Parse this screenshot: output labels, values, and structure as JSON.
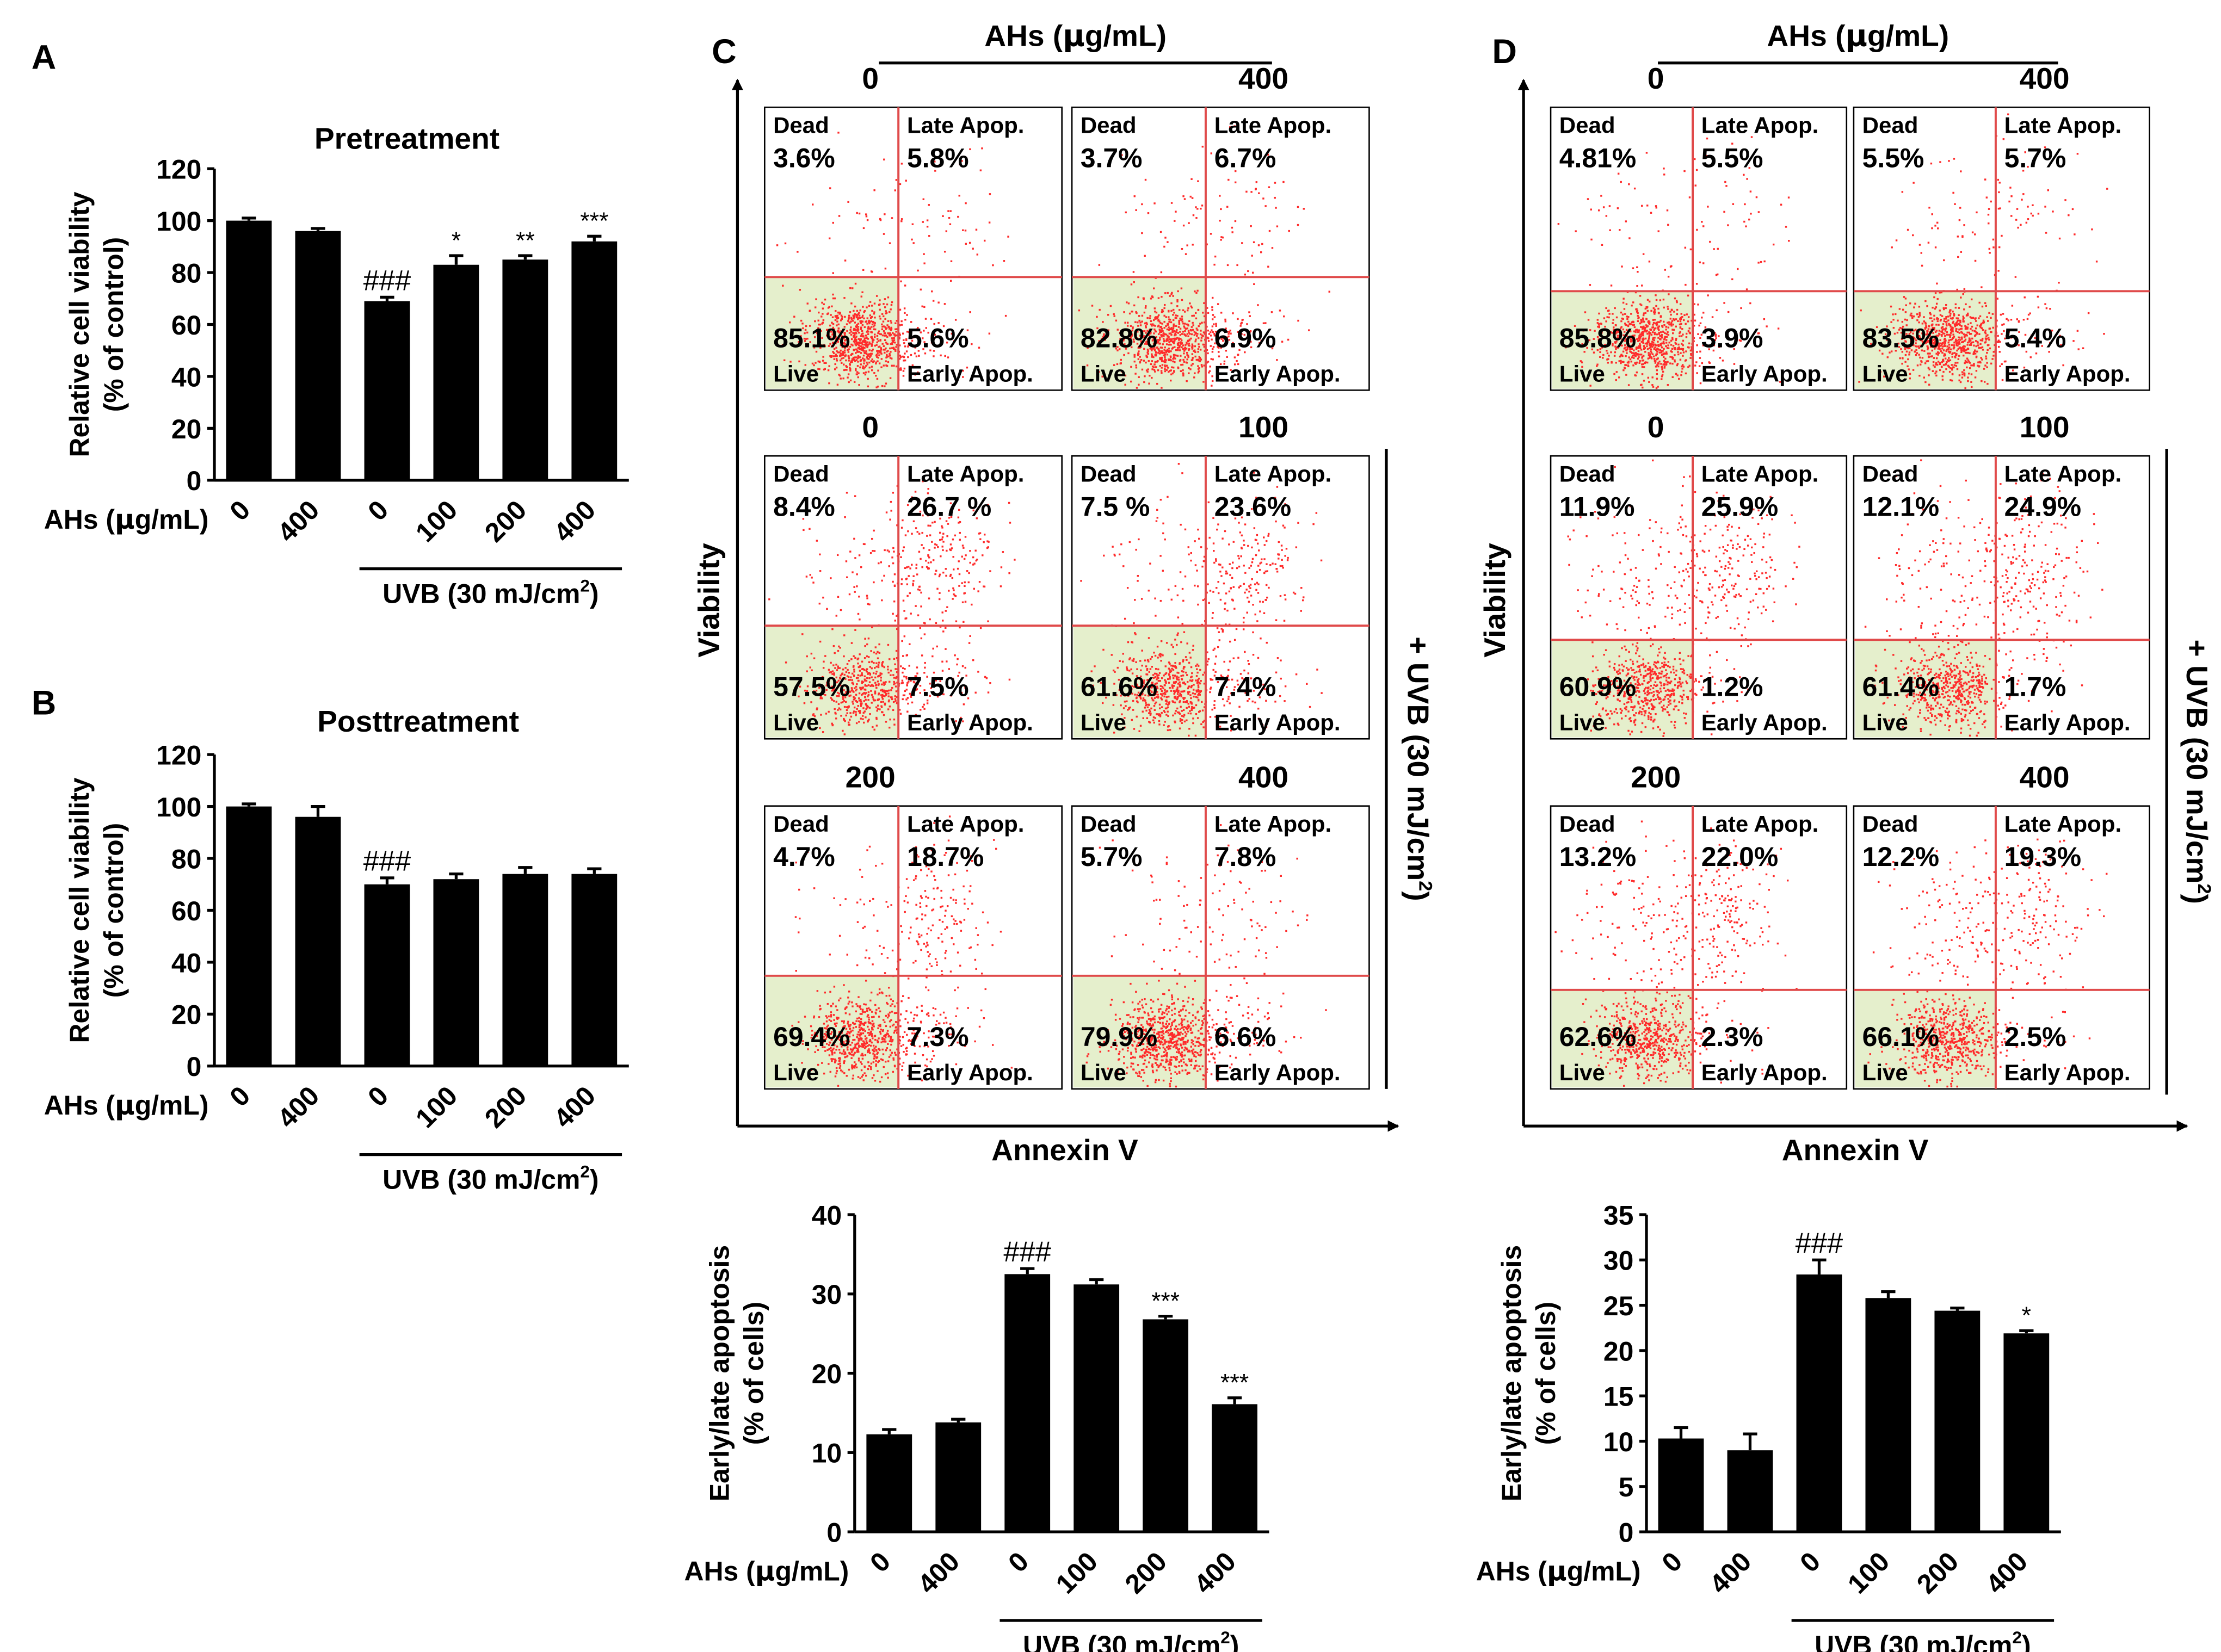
{
  "figure": {
    "panel_labels": [
      "A",
      "B",
      "C",
      "D"
    ],
    "greek_mu": "μ",
    "sup_2": "2",
    "ahs_header": {
      "pre": "AHs (",
      "mu": "μ",
      "post": "g/mL)"
    },
    "flow_axis": {
      "y": "Viability",
      "x": "Annexin V"
    },
    "side_label": "+ UVB (30 mJ/cm",
    "side_label_close": ")",
    "quadrant_labels": {
      "dead": "Dead",
      "late": "Late Apop.",
      "live": "Live",
      "early": "Early Apop."
    },
    "colors": {
      "bar": "#000000",
      "dot": "#ff2a2a",
      "gate": "#e04a4a",
      "live_fill": "#e5efcc",
      "axis": "#000000"
    }
  },
  "flow_panels": {
    "C": {
      "rows": [
        {
          "left": "0",
          "right": "400"
        },
        {
          "left": "0",
          "right": "100"
        },
        {
          "left": "200",
          "right": "400"
        }
      ],
      "plots": [
        {
          "dead": "3.6%",
          "late": "5.8%",
          "live": "85.1%",
          "early": "5.6%"
        },
        {
          "dead": "3.7%",
          "late": "6.7%",
          "live": "82.8%",
          "early": "6.9%"
        },
        {
          "dead": "8.4%",
          "late": "26.7 %",
          "live": "57.5%",
          "early": "7.5%"
        },
        {
          "dead": "7.5 %",
          "late": "23.6%",
          "live": "61.6%",
          "early": "7.4%"
        },
        {
          "dead": "4.7%",
          "late": "18.7%",
          "live": "69.4%",
          "early": "7.3%"
        },
        {
          "dead": "5.7%",
          "late": "7.8%",
          "live": "79.9%",
          "early": "6.6%"
        }
      ]
    },
    "D": {
      "rows": [
        {
          "left": "0",
          "right": "400"
        },
        {
          "left": "0",
          "right": "100"
        },
        {
          "left": "200",
          "right": "400"
        }
      ],
      "plots": [
        {
          "dead": "4.81%",
          "late": "5.5%",
          "live": "85.8%",
          "early": "3.9%"
        },
        {
          "dead": "5.5%",
          "late": "5.7%",
          "live": "83.5%",
          "early": "5.4%"
        },
        {
          "dead": "11.9%",
          "late": "25.9%",
          "live": "60.9%",
          "early": "1.2%"
        },
        {
          "dead": "12.1%",
          "late": "24.9%",
          "live": "61.4%",
          "early": "1.7%"
        },
        {
          "dead": "13.2%",
          "late": "22.0%",
          "live": "62.6%",
          "early": "2.3%"
        },
        {
          "dead": "12.2%",
          "late": "19.3%",
          "live": "66.1%",
          "early": "2.5%"
        }
      ]
    }
  },
  "chart_data": [
    {
      "id": "A",
      "type": "bar",
      "title": "Pretreatment",
      "ylabel": [
        "Relative cell viability",
        "(% of control)"
      ],
      "xlabel": {
        "pre": "AHs (",
        "mu": "μ",
        "post": "g/mL)"
      },
      "group_label": {
        "text": "UVB (30 mJ/cm",
        "sup": "2",
        "close": ")"
      },
      "categories": [
        "0",
        "400",
        "0",
        "100",
        "200",
        "400"
      ],
      "values": [
        100,
        96,
        69,
        83,
        85,
        92
      ],
      "errors": [
        1,
        1,
        1.5,
        3.5,
        1.5,
        2
      ],
      "annotations": [
        "",
        "",
        "###",
        "*",
        "**",
        "***"
      ],
      "ylim": [
        0,
        120
      ],
      "yticks": [
        "0",
        "20",
        "40",
        "60",
        "80",
        "100",
        "120"
      ]
    },
    {
      "id": "B",
      "type": "bar",
      "title": "Posttreatment",
      "ylabel": [
        "Relative cell viability",
        "(% of control)"
      ],
      "xlabel": {
        "pre": "AHs (",
        "mu": "μ",
        "post": "g/mL)"
      },
      "group_label": {
        "text": "UVB (30 mJ/cm",
        "sup": "2",
        "close": ")"
      },
      "categories": [
        "0",
        "400",
        "0",
        "100",
        "200",
        "400"
      ],
      "values": [
        100,
        96,
        70,
        72,
        74,
        74
      ],
      "errors": [
        1,
        4,
        2.5,
        2,
        2.5,
        2
      ],
      "annotations": [
        "",
        "",
        "###",
        "",
        "",
        ""
      ],
      "ylim": [
        0,
        120
      ],
      "yticks": [
        "0",
        "20",
        "40",
        "60",
        "80",
        "100",
        "120"
      ]
    },
    {
      "id": "C",
      "type": "bar",
      "title": "",
      "ylabel": [
        "Early/late apoptosis",
        "(% of cells)"
      ],
      "xlabel": {
        "pre": "AHs (",
        "mu": "μ",
        "post": "g/mL)"
      },
      "group_label": {
        "text": "UVB (30 mJ/cm",
        "sup": "2",
        "close": ")"
      },
      "categories": [
        "0",
        "400",
        "0",
        "100",
        "200",
        "400"
      ],
      "values": [
        12.3,
        13.8,
        32.5,
        31.2,
        26.8,
        16.1
      ],
      "errors": [
        0.6,
        0.4,
        0.7,
        0.6,
        0.4,
        0.8
      ],
      "annotations": [
        "",
        "",
        "###",
        "",
        "***",
        "***"
      ],
      "ylim": [
        0,
        40
      ],
      "yticks": [
        "0",
        "10",
        "20",
        "30",
        "40"
      ]
    },
    {
      "id": "D",
      "type": "bar",
      "title": "",
      "ylabel": [
        "Early/late apoptosis",
        "(% of cells)"
      ],
      "xlabel": {
        "pre": "AHs (",
        "mu": "μ",
        "post": "g/mL)"
      },
      "group_label": {
        "text": "UVB (30 mJ/cm",
        "sup": "2",
        "close": ")"
      },
      "categories": [
        "0",
        "400",
        "0",
        "100",
        "200",
        "400"
      ],
      "values": [
        10.3,
        9.0,
        28.4,
        25.8,
        24.4,
        21.9
      ],
      "errors": [
        1.2,
        1.8,
        1.6,
        0.7,
        0.3,
        0.3
      ],
      "annotations": [
        "",
        "",
        "###",
        "",
        "",
        "*"
      ],
      "ylim": [
        0,
        35
      ],
      "yticks": [
        "0",
        "5",
        "10",
        "15",
        "20",
        "25",
        "30",
        "35"
      ]
    }
  ]
}
